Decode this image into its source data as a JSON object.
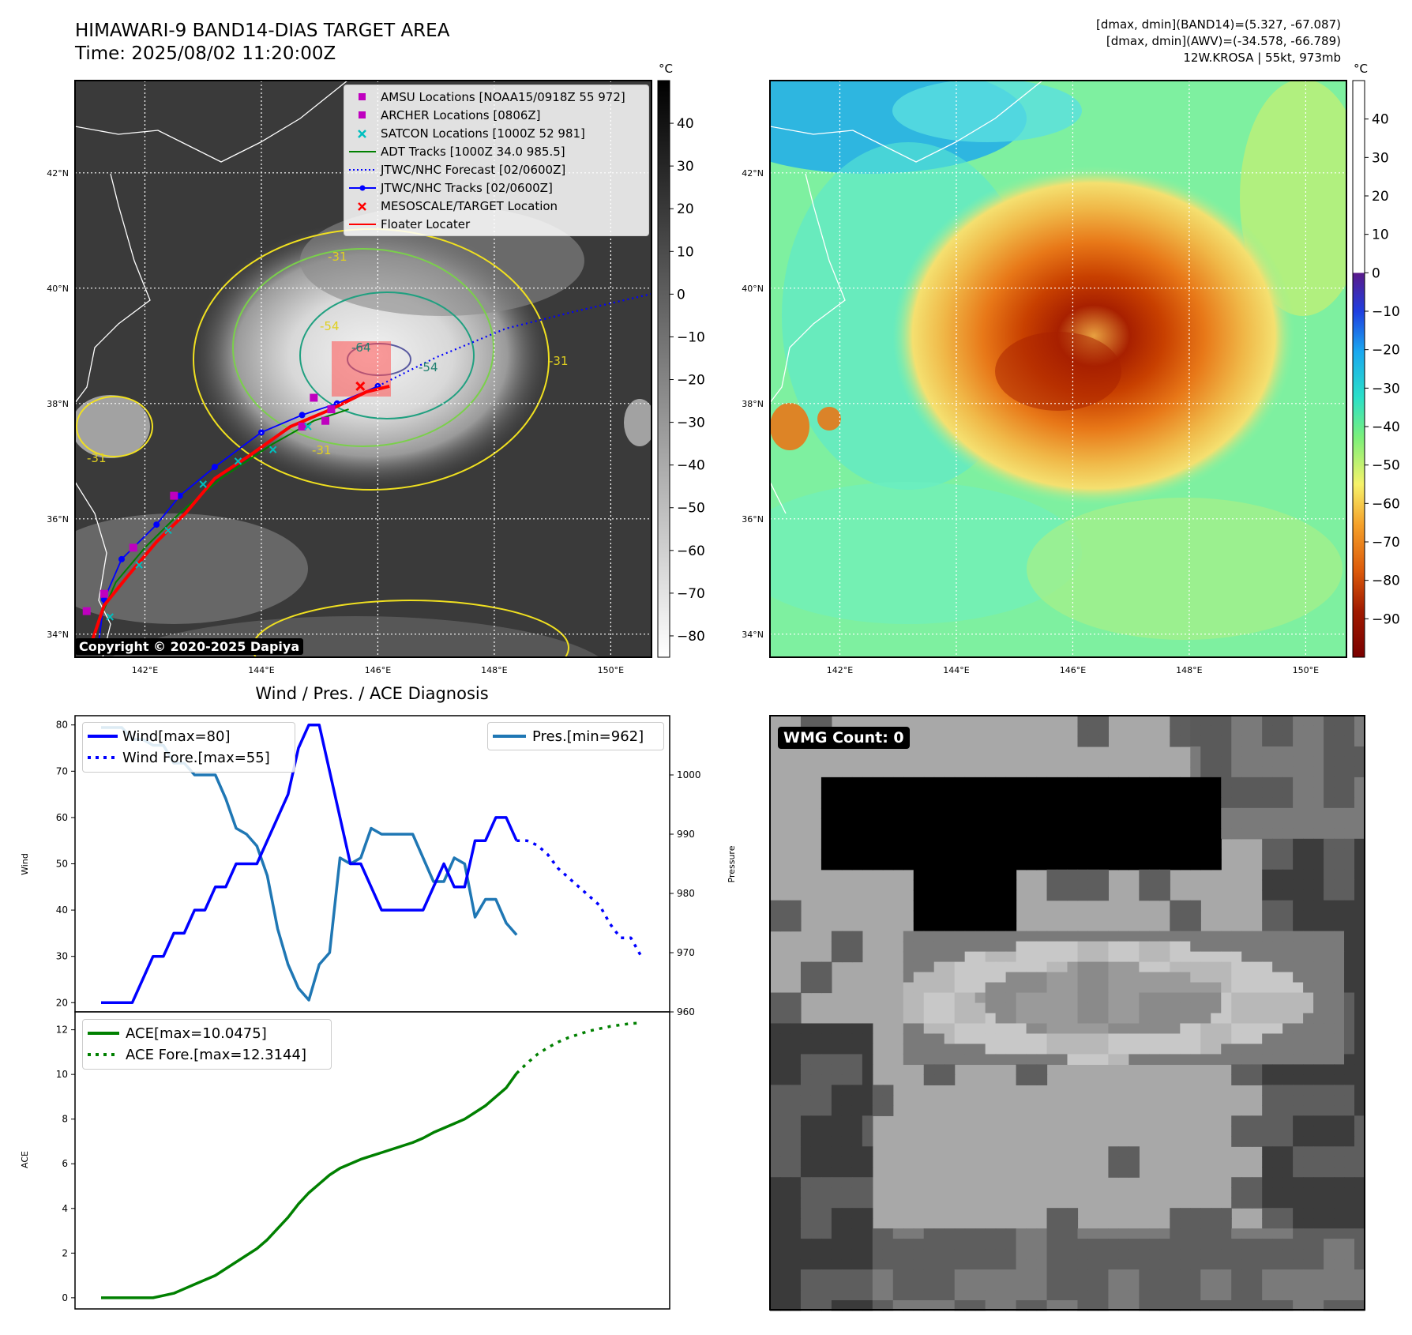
{
  "header": {
    "title_line1": "HIMAWARI-9 BAND14-DIAS TARGET AREA",
    "title_line2": "Time: 2025/08/02 11:20:00Z",
    "info_line1": "[dmax, dmin](BAND14)=(5.327, -67.087)",
    "info_line2": "[dmax, dmin](AWV)=(-34.578, -66.789)",
    "info_line3": "12W.KROSA | 55kt, 973mb"
  },
  "map_axes": {
    "lat_labels": [
      "42°N",
      "40°N",
      "38°N",
      "36°N",
      "34°N"
    ],
    "lat_values": [
      42,
      40,
      38,
      36,
      34
    ],
    "lon_labels": [
      "142°E",
      "144°E",
      "146°E",
      "148°E",
      "150°E"
    ],
    "lon_values": [
      142,
      144,
      146,
      148,
      150
    ],
    "lon_range": [
      140.8,
      150.7
    ],
    "lat_range": [
      33.6,
      43.6
    ]
  },
  "ir_panel": {
    "copyright": "Copyright © 2020-2025 Dapiya",
    "colorbar_unit": "°C",
    "colorbar_ticks": [
      "40",
      "30",
      "20",
      "10",
      "0",
      "−10",
      "−20",
      "−30",
      "−40",
      "−50",
      "−60",
      "−70",
      "−80"
    ],
    "colorbar_values": [
      40,
      30,
      20,
      10,
      0,
      -10,
      -20,
      -30,
      -40,
      -50,
      -60,
      -70,
      -80
    ],
    "colorbar_range": [
      -85,
      50
    ],
    "contour_labels": [
      "-31",
      "-54",
      "-64",
      "-54",
      "-31",
      "-31",
      "-31"
    ],
    "legend": [
      {
        "label": "AMSU Locations [NOAA15/0918Z 55 972]",
        "marker": "square",
        "color": "#bf00bf"
      },
      {
        "label": "ARCHER Locations [0806Z]",
        "marker": "square",
        "color": "#bf00bf"
      },
      {
        "label": "SATCON Locations [1000Z 52 981]",
        "marker": "x",
        "color": "#00bfbf"
      },
      {
        "label": "ADT Tracks [1000Z 34.0 985.5]",
        "marker": "line",
        "color": "#008000"
      },
      {
        "label": "JTWC/NHC Forecast [02/0600Z]",
        "marker": "dotted",
        "color": "#0000ff"
      },
      {
        "label": "JTWC/NHC Tracks [02/0600Z]",
        "marker": "line-dot",
        "color": "#0000ff"
      },
      {
        "label": "MESOSCALE/TARGET Location",
        "marker": "x",
        "color": "#ff0000"
      },
      {
        "label": "Floater Locater",
        "marker": "line",
        "color": "#ff0000"
      }
    ],
    "jtwc_track": [
      [
        141.2,
        33.8
      ],
      [
        141.3,
        34.6
      ],
      [
        141.6,
        35.3
      ],
      [
        142.2,
        35.9
      ],
      [
        142.6,
        36.4
      ],
      [
        143.2,
        36.9
      ],
      [
        144.0,
        37.5
      ],
      [
        144.7,
        37.8
      ],
      [
        145.3,
        38.0
      ],
      [
        146.0,
        38.3
      ]
    ],
    "jtwc_forecast": [
      [
        146.0,
        38.3
      ],
      [
        147.0,
        38.8
      ],
      [
        148.2,
        39.3
      ],
      [
        149.4,
        39.6
      ],
      [
        150.7,
        39.9
      ]
    ],
    "floater_track": [
      [
        141.1,
        33.9
      ],
      [
        141.3,
        34.5
      ],
      [
        141.7,
        35.0
      ],
      [
        142.2,
        35.6
      ],
      [
        142.7,
        36.1
      ],
      [
        143.2,
        36.7
      ],
      [
        143.8,
        37.1
      ],
      [
        144.5,
        37.6
      ],
      [
        145.2,
        37.9
      ],
      [
        145.8,
        38.2
      ],
      [
        146.2,
        38.3
      ]
    ],
    "adt_track": [
      [
        141.2,
        34.2
      ],
      [
        141.5,
        34.9
      ],
      [
        142.0,
        35.5
      ],
      [
        142.6,
        36.1
      ],
      [
        143.3,
        36.7
      ],
      [
        144.2,
        37.3
      ],
      [
        144.9,
        37.7
      ],
      [
        145.5,
        37.9
      ]
    ],
    "amsu_points": [
      [
        141.0,
        34.4
      ],
      [
        141.3,
        34.7
      ],
      [
        141.8,
        35.5
      ],
      [
        142.5,
        36.4
      ],
      [
        144.9,
        38.1
      ],
      [
        145.1,
        37.7
      ]
    ],
    "archer_points": [
      [
        144.7,
        37.6
      ],
      [
        145.2,
        37.9
      ]
    ],
    "satcon_points": [
      [
        141.4,
        34.3
      ],
      [
        141.9,
        35.2
      ],
      [
        142.4,
        35.8
      ],
      [
        143.0,
        36.6
      ],
      [
        143.6,
        37.0
      ],
      [
        144.2,
        37.2
      ],
      [
        144.8,
        37.6
      ]
    ],
    "target": [
      145.7,
      38.3
    ]
  },
  "awv_panel": {
    "colorbar_unit": "°C",
    "colorbar_ticks": [
      "40",
      "30",
      "20",
      "10",
      "0",
      "−10",
      "−20",
      "−30",
      "−40",
      "−50",
      "−60",
      "−70",
      "−80",
      "−90"
    ],
    "colorbar_values": [
      40,
      30,
      20,
      10,
      0,
      -10,
      -20,
      -30,
      -40,
      -50,
      -60,
      -70,
      -80,
      -90
    ],
    "colorbar_range": [
      -100,
      50
    ]
  },
  "diagnosis": {
    "title": "Wind / Pres. / ACE Diagnosis",
    "wind_ylabel": "Wind",
    "pressure_ylabel": "Pressure",
    "ace_ylabel": "ACE",
    "wind_ticks": [
      "80",
      "70",
      "60",
      "50",
      "40",
      "30",
      "20"
    ],
    "pressure_ticks": [
      "1000",
      "990",
      "980",
      "970",
      "960"
    ],
    "ace_ticks": [
      "12",
      "10",
      "8",
      "6",
      "4",
      "2",
      "0"
    ],
    "legend_wind": "Wind[max=80]",
    "legend_wind_fore": "Wind Fore.[max=55]",
    "legend_pres": "Pres.[min=962]",
    "legend_ace": "ACE[max=10.0475]",
    "legend_ace_fore": "ACE Fore.[max=12.3144]"
  },
  "chart_data": [
    {
      "type": "line",
      "title": "Wind / Pres. / ACE Diagnosis",
      "ylabel": "Wind",
      "ylim": [
        18,
        82
      ],
      "x": [
        0,
        1,
        2,
        3,
        4,
        5,
        6,
        7,
        8,
        9,
        10,
        11,
        12,
        13,
        14,
        15,
        16,
        17,
        18,
        19,
        20,
        21,
        22,
        23,
        24,
        25,
        26,
        27,
        28,
        29,
        30,
        31,
        32,
        33,
        34,
        35,
        36,
        37,
        38,
        39,
        40,
        41,
        42,
        43,
        44,
        45,
        46,
        47,
        48,
        49,
        50,
        51,
        52
      ],
      "series": [
        {
          "name": "Wind[max=80]",
          "color": "#0000ff",
          "style": "solid",
          "x": [
            0,
            1,
            2,
            3,
            4,
            5,
            6,
            7,
            8,
            9,
            10,
            11,
            12,
            13,
            14,
            15,
            16,
            17,
            18,
            19,
            20,
            21,
            22,
            23,
            24,
            25,
            26,
            27,
            28,
            29,
            30,
            31,
            32,
            33,
            34,
            35,
            36,
            37,
            38,
            39,
            40
          ],
          "values": [
            20,
            20,
            20,
            20,
            25,
            30,
            30,
            35,
            35,
            40,
            40,
            45,
            45,
            50,
            50,
            50,
            55,
            60,
            65,
            75,
            80,
            80,
            70,
            60,
            50,
            50,
            45,
            40,
            40,
            40,
            40,
            40,
            45,
            50,
            45,
            45,
            55,
            55,
            60,
            60,
            55
          ]
        },
        {
          "name": "Wind Fore.[max=55]",
          "color": "#0000ff",
          "style": "dotted",
          "x": [
            40,
            41,
            42,
            43,
            44,
            45,
            46,
            47,
            48,
            49,
            50,
            51,
            52
          ],
          "values": [
            55,
            55,
            54,
            52,
            49,
            47,
            45,
            43,
            41,
            37,
            34,
            34,
            30
          ]
        }
      ]
    },
    {
      "type": "line",
      "ylabel": "Pressure",
      "ylim": [
        960,
        1010
      ],
      "series": [
        {
          "name": "Pres.[min=962]",
          "color": "#1f77b4",
          "style": "solid",
          "x": [
            0,
            1,
            2,
            3,
            4,
            5,
            6,
            7,
            8,
            9,
            10,
            11,
            12,
            13,
            14,
            15,
            16,
            17,
            18,
            19,
            20,
            21,
            22,
            23,
            24,
            25,
            26,
            27,
            28,
            29,
            30,
            31,
            32,
            33,
            34,
            35,
            36,
            37,
            38,
            39,
            40
          ],
          "values": [
            1008,
            1008,
            1008,
            1006,
            1006,
            1005,
            1005,
            1002,
            1002,
            1000,
            1000,
            1000,
            996,
            991,
            990,
            988,
            983,
            974,
            968,
            964,
            962,
            968,
            970,
            986,
            985,
            986,
            991,
            990,
            990,
            990,
            990,
            986,
            982,
            982,
            986,
            985,
            976,
            979,
            979,
            975,
            973
          ]
        }
      ]
    },
    {
      "type": "line",
      "ylabel": "ACE",
      "ylim": [
        -0.5,
        12.8
      ],
      "series": [
        {
          "name": "ACE[max=10.0475]",
          "color": "#008000",
          "style": "solid",
          "x": [
            0,
            1,
            2,
            3,
            4,
            5,
            6,
            7,
            8,
            9,
            10,
            11,
            12,
            13,
            14,
            15,
            16,
            17,
            18,
            19,
            20,
            21,
            22,
            23,
            24,
            25,
            26,
            27,
            28,
            29,
            30,
            31,
            32,
            33,
            34,
            35,
            36,
            37,
            38,
            39,
            40
          ],
          "values": [
            0,
            0,
            0,
            0,
            0,
            0,
            0.1,
            0.2,
            0.4,
            0.6,
            0.8,
            1.0,
            1.3,
            1.6,
            1.9,
            2.2,
            2.6,
            3.1,
            3.6,
            4.2,
            4.7,
            5.1,
            5.5,
            5.8,
            6.0,
            6.2,
            6.35,
            6.5,
            6.65,
            6.8,
            6.95,
            7.15,
            7.4,
            7.6,
            7.8,
            8.0,
            8.3,
            8.6,
            9.0,
            9.4,
            10.05
          ]
        },
        {
          "name": "ACE Fore.[max=12.3144]",
          "color": "#008000",
          "style": "dotted",
          "x": [
            40,
            41,
            42,
            43,
            44,
            45,
            46,
            47,
            48,
            49,
            50,
            51,
            52
          ],
          "values": [
            10.05,
            10.5,
            10.9,
            11.2,
            11.45,
            11.65,
            11.8,
            11.95,
            12.05,
            12.15,
            12.22,
            12.28,
            12.31
          ]
        }
      ]
    }
  ],
  "wmg_panel": {
    "badge": "WMG Count: 0"
  }
}
